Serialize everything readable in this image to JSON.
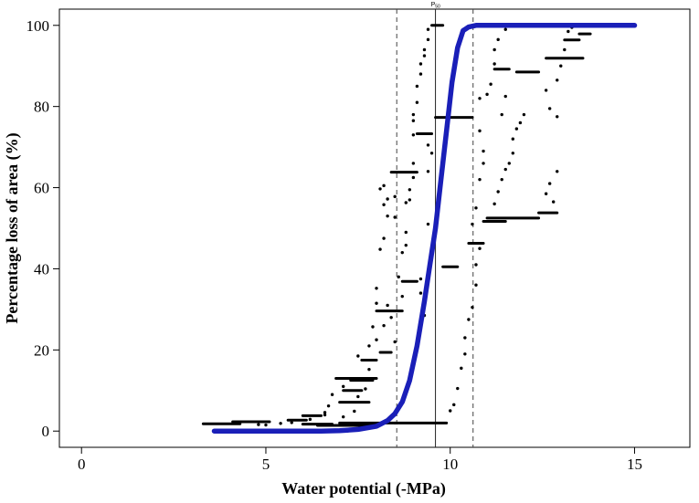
{
  "chart_data": {
    "type": "scatter",
    "xlabel": "Water potential (-MPa)",
    "ylabel": "Percentage loss of area (%)",
    "xlim": [
      -0.6,
      16.5
    ],
    "ylim": [
      -4,
      104
    ],
    "xticks": [
      0,
      5,
      10,
      15
    ],
    "yticks": [
      0,
      20,
      40,
      60,
      80,
      100
    ],
    "grid": false,
    "legend": "none",
    "annotations": [
      {
        "label": "P",
        "subscript": "50",
        "x": 9.6
      }
    ],
    "vlines": [
      {
        "x": 8.55,
        "style": "dashed"
      },
      {
        "x": 9.6,
        "style": "solid"
      },
      {
        "x": 10.62,
        "style": "dashed"
      }
    ],
    "fitted_curve": {
      "color": "#1a1fb8",
      "x_range": [
        3.6,
        15.0
      ],
      "points": [
        [
          3.6,
          0
        ],
        [
          5.0,
          0
        ],
        [
          6.0,
          0
        ],
        [
          6.5,
          0
        ],
        [
          7.0,
          0.1
        ],
        [
          7.5,
          0.4
        ],
        [
          8.0,
          1.2
        ],
        [
          8.3,
          2.6
        ],
        [
          8.5,
          4.3
        ],
        [
          8.7,
          7.2
        ],
        [
          8.9,
          12.5
        ],
        [
          9.1,
          21
        ],
        [
          9.3,
          32
        ],
        [
          9.45,
          41
        ],
        [
          9.6,
          50
        ],
        [
          9.75,
          62
        ],
        [
          9.9,
          74
        ],
        [
          10.05,
          86
        ],
        [
          10.2,
          94.5
        ],
        [
          10.35,
          98.7
        ],
        [
          10.5,
          99.6
        ],
        [
          10.7,
          100
        ],
        [
          11.5,
          100
        ],
        [
          13,
          100
        ],
        [
          15.0,
          100
        ]
      ]
    },
    "series": [
      {
        "segments": [
          [
            3.3,
            4.3,
            1.8
          ],
          [
            4.1,
            5.1,
            2.3
          ],
          [
            5.6,
            6.1,
            2.7
          ],
          [
            6.0,
            6.5,
            3.8
          ],
          [
            6.0,
            6.8,
            1.7
          ],
          [
            6.4,
            8.1,
            1.4
          ],
          [
            7.0,
            8.5,
            2.0
          ],
          [
            8.5,
            9.9,
            2.0
          ],
          [
            6.9,
            8.0,
            13.0
          ],
          [
            7.0,
            7.8,
            7.1
          ],
          [
            7.1,
            7.6,
            10.0
          ],
          [
            7.3,
            7.9,
            12.5
          ],
          [
            7.6,
            8.0,
            17.5
          ],
          [
            8.1,
            8.4,
            19.4
          ],
          [
            8.0,
            8.7,
            29.6
          ],
          [
            8.7,
            9.1,
            36.9
          ],
          [
            8.4,
            9.1,
            63.8
          ],
          [
            9.1,
            9.5,
            73.3
          ],
          [
            9.6,
            10.6,
            77.3
          ],
          [
            9.8,
            10.2,
            40.5
          ],
          [
            10.5,
            10.9,
            46.3
          ],
          [
            10.9,
            11.5,
            51.7
          ],
          [
            11.0,
            12.4,
            52.5
          ],
          [
            12.4,
            12.9,
            53.8
          ],
          [
            11.8,
            12.4,
            88.5
          ],
          [
            12.6,
            13.6,
            91.9
          ],
          [
            11.2,
            11.6,
            89.2
          ],
          [
            13.1,
            13.5,
            96.4
          ],
          [
            13.5,
            13.8,
            97.9
          ],
          [
            9.5,
            9.8,
            100
          ]
        ],
        "points": [
          [
            4.8,
            1.6
          ],
          [
            5.0,
            1.5
          ],
          [
            5.4,
            1.9
          ],
          [
            5.7,
            2.1
          ],
          [
            6.2,
            2.9
          ],
          [
            6.6,
            4.6
          ],
          [
            6.7,
            6.2
          ],
          [
            7.1,
            3.5
          ],
          [
            7.4,
            4.9
          ],
          [
            7.5,
            8.5
          ],
          [
            7.7,
            10.4
          ],
          [
            7.8,
            15.2
          ],
          [
            7.8,
            21.0
          ],
          [
            7.9,
            25.7
          ],
          [
            8.0,
            31.5
          ],
          [
            8.0,
            35.2
          ],
          [
            8.1,
            44.8
          ],
          [
            8.2,
            47.5
          ],
          [
            8.3,
            57.2
          ],
          [
            8.1,
            59.7
          ],
          [
            8.2,
            60.5
          ],
          [
            8.2,
            55.8
          ],
          [
            8.3,
            53.0
          ],
          [
            8.5,
            57.8
          ],
          [
            8.5,
            52.7
          ],
          [
            8.6,
            38.0
          ],
          [
            8.7,
            44.0
          ],
          [
            8.7,
            33.2
          ],
          [
            8.8,
            45.8
          ],
          [
            8.8,
            49.0
          ],
          [
            8.8,
            56.3
          ],
          [
            8.9,
            57.0
          ],
          [
            8.9,
            59.5
          ],
          [
            9.0,
            62.5
          ],
          [
            9.0,
            66.0
          ],
          [
            9.0,
            73.0
          ],
          [
            9.0,
            76.5
          ],
          [
            9.0,
            78.0
          ],
          [
            9.1,
            81.0
          ],
          [
            9.1,
            85.0
          ],
          [
            9.2,
            88.0
          ],
          [
            9.2,
            90.5
          ],
          [
            9.3,
            92.5
          ],
          [
            9.3,
            94.0
          ],
          [
            9.4,
            96.5
          ],
          [
            9.4,
            99.0
          ],
          [
            9.2,
            34.0
          ],
          [
            9.2,
            37.5
          ],
          [
            9.3,
            28.5
          ],
          [
            9.4,
            51.0
          ],
          [
            9.4,
            64.0
          ],
          [
            9.5,
            68.5
          ],
          [
            9.4,
            70.5
          ],
          [
            8.5,
            22.0
          ],
          [
            8.4,
            28.0
          ],
          [
            8.3,
            31.0
          ],
          [
            8.2,
            26.0
          ],
          [
            8.0,
            22.5
          ],
          [
            7.5,
            18.5
          ],
          [
            7.1,
            11.0
          ],
          [
            6.8,
            9.0
          ],
          [
            6.6,
            4.0
          ],
          [
            10.0,
            5.0
          ],
          [
            10.1,
            6.5
          ],
          [
            10.2,
            10.5
          ],
          [
            10.3,
            15.5
          ],
          [
            10.4,
            19.0
          ],
          [
            10.4,
            23.0
          ],
          [
            10.5,
            27.5
          ],
          [
            10.6,
            30.5
          ],
          [
            10.7,
            36.0
          ],
          [
            10.7,
            41.0
          ],
          [
            10.8,
            45.0
          ],
          [
            10.6,
            51.0
          ],
          [
            10.7,
            55.0
          ],
          [
            10.8,
            62.0
          ],
          [
            10.9,
            66.0
          ],
          [
            10.9,
            69.0
          ],
          [
            10.8,
            74.0
          ],
          [
            10.8,
            82.0
          ],
          [
            11.0,
            83.0
          ],
          [
            11.1,
            85.5
          ],
          [
            11.2,
            90.5
          ],
          [
            11.2,
            94.0
          ],
          [
            11.3,
            96.5
          ],
          [
            11.5,
            99.0
          ],
          [
            11.2,
            56.0
          ],
          [
            11.3,
            59.0
          ],
          [
            11.4,
            62.0
          ],
          [
            11.5,
            64.5
          ],
          [
            11.6,
            66.0
          ],
          [
            11.7,
            68.5
          ],
          [
            11.7,
            72.0
          ],
          [
            11.8,
            74.5
          ],
          [
            11.9,
            76.0
          ],
          [
            12.0,
            78.0
          ],
          [
            11.5,
            82.5
          ],
          [
            11.4,
            78.0
          ],
          [
            12.6,
            58.5
          ],
          [
            12.7,
            61.0
          ],
          [
            12.9,
            64.0
          ],
          [
            12.8,
            56.5
          ],
          [
            12.7,
            79.5
          ],
          [
            12.6,
            84.0
          ],
          [
            12.9,
            86.5
          ],
          [
            13.0,
            90.0
          ],
          [
            13.1,
            94.0
          ],
          [
            12.9,
            77.5
          ],
          [
            13.2,
            98.5
          ],
          [
            13.3,
            99.5
          ]
        ]
      }
    ]
  }
}
